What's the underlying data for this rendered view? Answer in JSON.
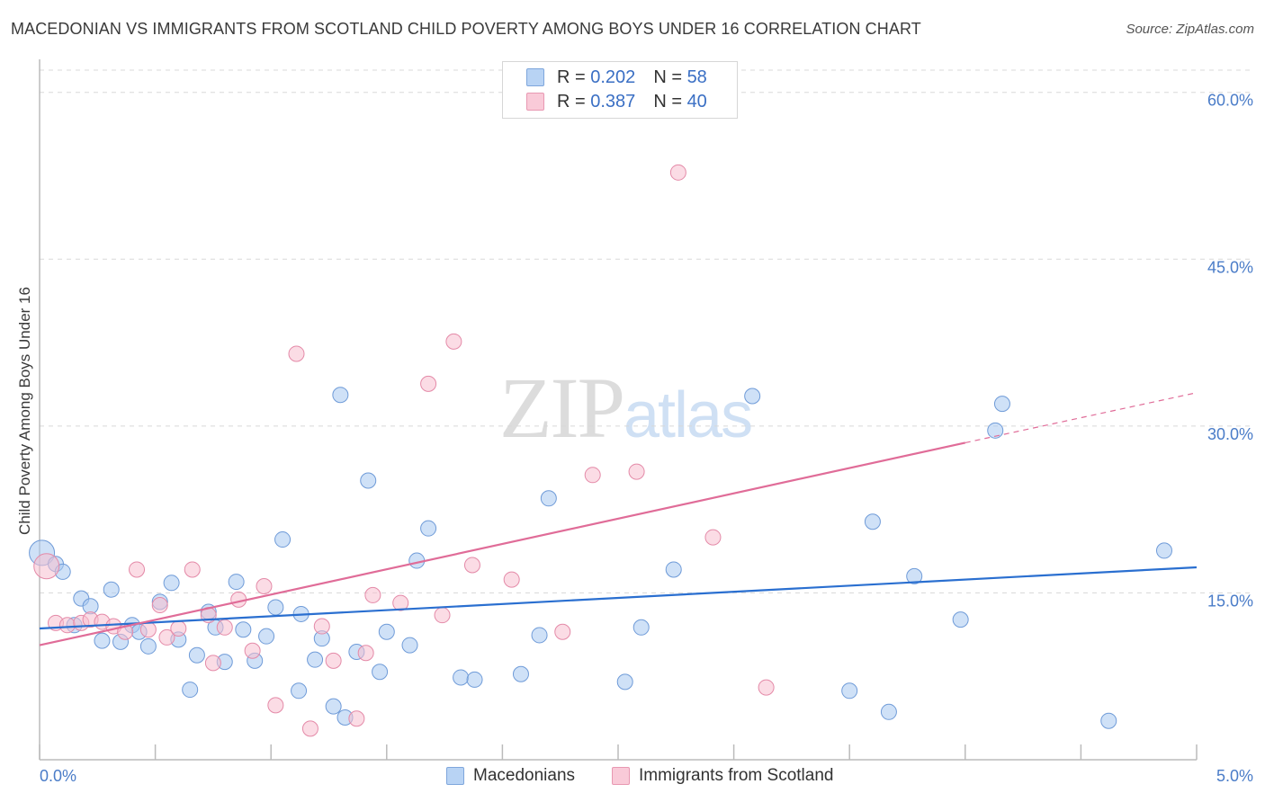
{
  "title": "MACEDONIAN VS IMMIGRANTS FROM SCOTLAND CHILD POVERTY AMONG BOYS UNDER 16 CORRELATION CHART",
  "source": "Source: ZipAtlas.com",
  "watermark": {
    "zip": "ZIP",
    "atlas": "atlas"
  },
  "legend": {
    "rows": [
      {
        "r_label": "R = ",
        "r_value": "0.202",
        "n_label": "N = ",
        "n_value": "58"
      },
      {
        "r_label": "R = ",
        "r_value": "0.387",
        "n_label": "N = ",
        "n_value": "40"
      }
    ]
  },
  "colors": {
    "blue_fill": "#a8c8f0",
    "blue_stroke": "#6f9bd8",
    "blue_line": "#2a6fd0",
    "pink_fill": "#f7bfd0",
    "pink_stroke": "#e48aa8",
    "pink_line": "#e06c98",
    "grid": "#d8d8d8",
    "tick_text": "#4a7cc8"
  },
  "chart_data": {
    "type": "scatter",
    "title": "MACEDONIAN VS IMMIGRANTS FROM SCOTLAND CHILD POVERTY AMONG BOYS UNDER 16 CORRELATION CHART",
    "xlabel": "",
    "ylabel": "Child Poverty Among Boys Under 16",
    "xlim": [
      0,
      5
    ],
    "ylim": [
      0,
      62
    ],
    "x_tick_labels": [
      "0.0%",
      "5.0%"
    ],
    "y_ticks": [
      15,
      30,
      45,
      60
    ],
    "y_tick_labels": [
      "15.0%",
      "30.0%",
      "45.0%",
      "60.0%"
    ],
    "grid": true,
    "legend_position": "top-center",
    "series": [
      {
        "name": "Macedonians",
        "color": "#a8c8f0",
        "trend": {
          "x0": 0,
          "y0": 11.8,
          "x1": 5,
          "y1": 17.3
        },
        "points": [
          [
            0.01,
            18.6
          ],
          [
            0.07,
            17.6
          ],
          [
            0.1,
            16.9
          ],
          [
            0.15,
            12.1
          ],
          [
            0.18,
            14.5
          ],
          [
            0.22,
            13.8
          ],
          [
            0.27,
            10.7
          ],
          [
            0.31,
            15.3
          ],
          [
            0.35,
            10.6
          ],
          [
            0.4,
            12.1
          ],
          [
            0.43,
            11.5
          ],
          [
            0.47,
            10.2
          ],
          [
            0.52,
            14.2
          ],
          [
            0.6,
            10.8
          ],
          [
            0.57,
            15.9
          ],
          [
            0.65,
            6.3
          ],
          [
            0.68,
            9.4
          ],
          [
            0.73,
            13.3
          ],
          [
            0.76,
            11.9
          ],
          [
            0.8,
            8.8
          ],
          [
            0.85,
            16.0
          ],
          [
            0.88,
            11.7
          ],
          [
            0.93,
            8.9
          ],
          [
            0.98,
            11.1
          ],
          [
            1.02,
            13.7
          ],
          [
            1.05,
            19.8
          ],
          [
            1.12,
            6.2
          ],
          [
            1.13,
            13.1
          ],
          [
            1.19,
            9.0
          ],
          [
            1.22,
            10.9
          ],
          [
            1.27,
            4.8
          ],
          [
            1.3,
            32.8
          ],
          [
            1.32,
            3.8
          ],
          [
            1.37,
            9.7
          ],
          [
            1.42,
            25.1
          ],
          [
            1.47,
            7.9
          ],
          [
            1.5,
            11.5
          ],
          [
            1.6,
            10.3
          ],
          [
            1.63,
            17.9
          ],
          [
            1.68,
            20.8
          ],
          [
            1.82,
            7.4
          ],
          [
            1.88,
            7.2
          ],
          [
            2.08,
            7.7
          ],
          [
            2.16,
            11.2
          ],
          [
            2.2,
            23.5
          ],
          [
            2.53,
            7.0
          ],
          [
            2.6,
            11.9
          ],
          [
            2.74,
            17.1
          ],
          [
            3.08,
            32.7
          ],
          [
            3.5,
            6.2
          ],
          [
            3.6,
            21.4
          ],
          [
            3.67,
            4.3
          ],
          [
            3.78,
            16.5
          ],
          [
            3.98,
            12.6
          ],
          [
            4.13,
            29.6
          ],
          [
            4.16,
            32.0
          ],
          [
            4.62,
            3.5
          ],
          [
            4.86,
            18.8
          ]
        ]
      },
      {
        "name": "Immigrants from Scotland",
        "color": "#f7bfd0",
        "trend": {
          "x0": 0,
          "y0": 10.3,
          "x1": 4.0,
          "y1": 28.5,
          "dash_x1": 5,
          "dash_y1": 33.0
        },
        "points": [
          [
            0.03,
            17.4
          ],
          [
            0.07,
            12.3
          ],
          [
            0.12,
            12.1
          ],
          [
            0.18,
            12.3
          ],
          [
            0.22,
            12.6
          ],
          [
            0.27,
            12.4
          ],
          [
            0.32,
            12.0
          ],
          [
            0.37,
            11.5
          ],
          [
            0.42,
            17.1
          ],
          [
            0.47,
            11.7
          ],
          [
            0.52,
            13.9
          ],
          [
            0.55,
            11.0
          ],
          [
            0.6,
            11.8
          ],
          [
            0.66,
            17.1
          ],
          [
            0.73,
            13.0
          ],
          [
            0.75,
            8.7
          ],
          [
            0.8,
            11.9
          ],
          [
            0.86,
            14.4
          ],
          [
            0.92,
            9.8
          ],
          [
            0.97,
            15.6
          ],
          [
            1.02,
            4.9
          ],
          [
            1.11,
            36.5
          ],
          [
            1.17,
            2.8
          ],
          [
            1.22,
            12.0
          ],
          [
            1.27,
            8.9
          ],
          [
            1.37,
            3.7
          ],
          [
            1.41,
            9.6
          ],
          [
            1.44,
            14.8
          ],
          [
            1.56,
            14.1
          ],
          [
            1.68,
            33.8
          ],
          [
            1.74,
            13.0
          ],
          [
            1.79,
            37.6
          ],
          [
            1.87,
            17.5
          ],
          [
            2.04,
            16.2
          ],
          [
            2.26,
            11.5
          ],
          [
            2.39,
            25.6
          ],
          [
            2.58,
            25.9
          ],
          [
            2.76,
            52.8
          ],
          [
            2.91,
            20.0
          ],
          [
            3.14,
            6.5
          ]
        ]
      }
    ]
  },
  "bottom_legend": {
    "items": [
      {
        "label": "Macedonians"
      },
      {
        "label": "Immigrants from Scotland"
      }
    ]
  }
}
